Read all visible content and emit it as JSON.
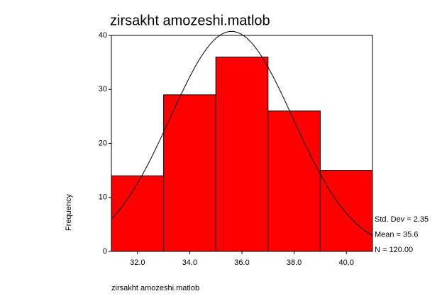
{
  "chart_data": {
    "type": "histogram",
    "title": "zirsakht amozeshi.matlob",
    "x_label": "zirsakht amozeshi.matlob",
    "y_label": "Frequency",
    "bins": [
      31,
      33,
      35,
      37,
      39,
      41
    ],
    "values": [
      14,
      29,
      36,
      26,
      15
    ],
    "color": "#ff0000",
    "xlim": [
      31,
      41
    ],
    "xticks": [
      {
        "value": 32,
        "label": "32.0"
      },
      {
        "value": 34,
        "label": "34.0"
      },
      {
        "value": 36,
        "label": "36.0"
      },
      {
        "value": 38,
        "label": "38.0"
      },
      {
        "value": 40,
        "label": "40.0"
      }
    ],
    "ylim": [
      0,
      40
    ],
    "yticks": [
      0,
      10,
      20,
      30,
      40
    ],
    "stats": [
      {
        "label": "Std. Dev = 2.35",
        "value": 2.35
      },
      {
        "label": "Mean = 35.6",
        "value": 35.6
      },
      {
        "label": "N = 120.00",
        "value": 120
      }
    ],
    "normal_curve": true
  }
}
